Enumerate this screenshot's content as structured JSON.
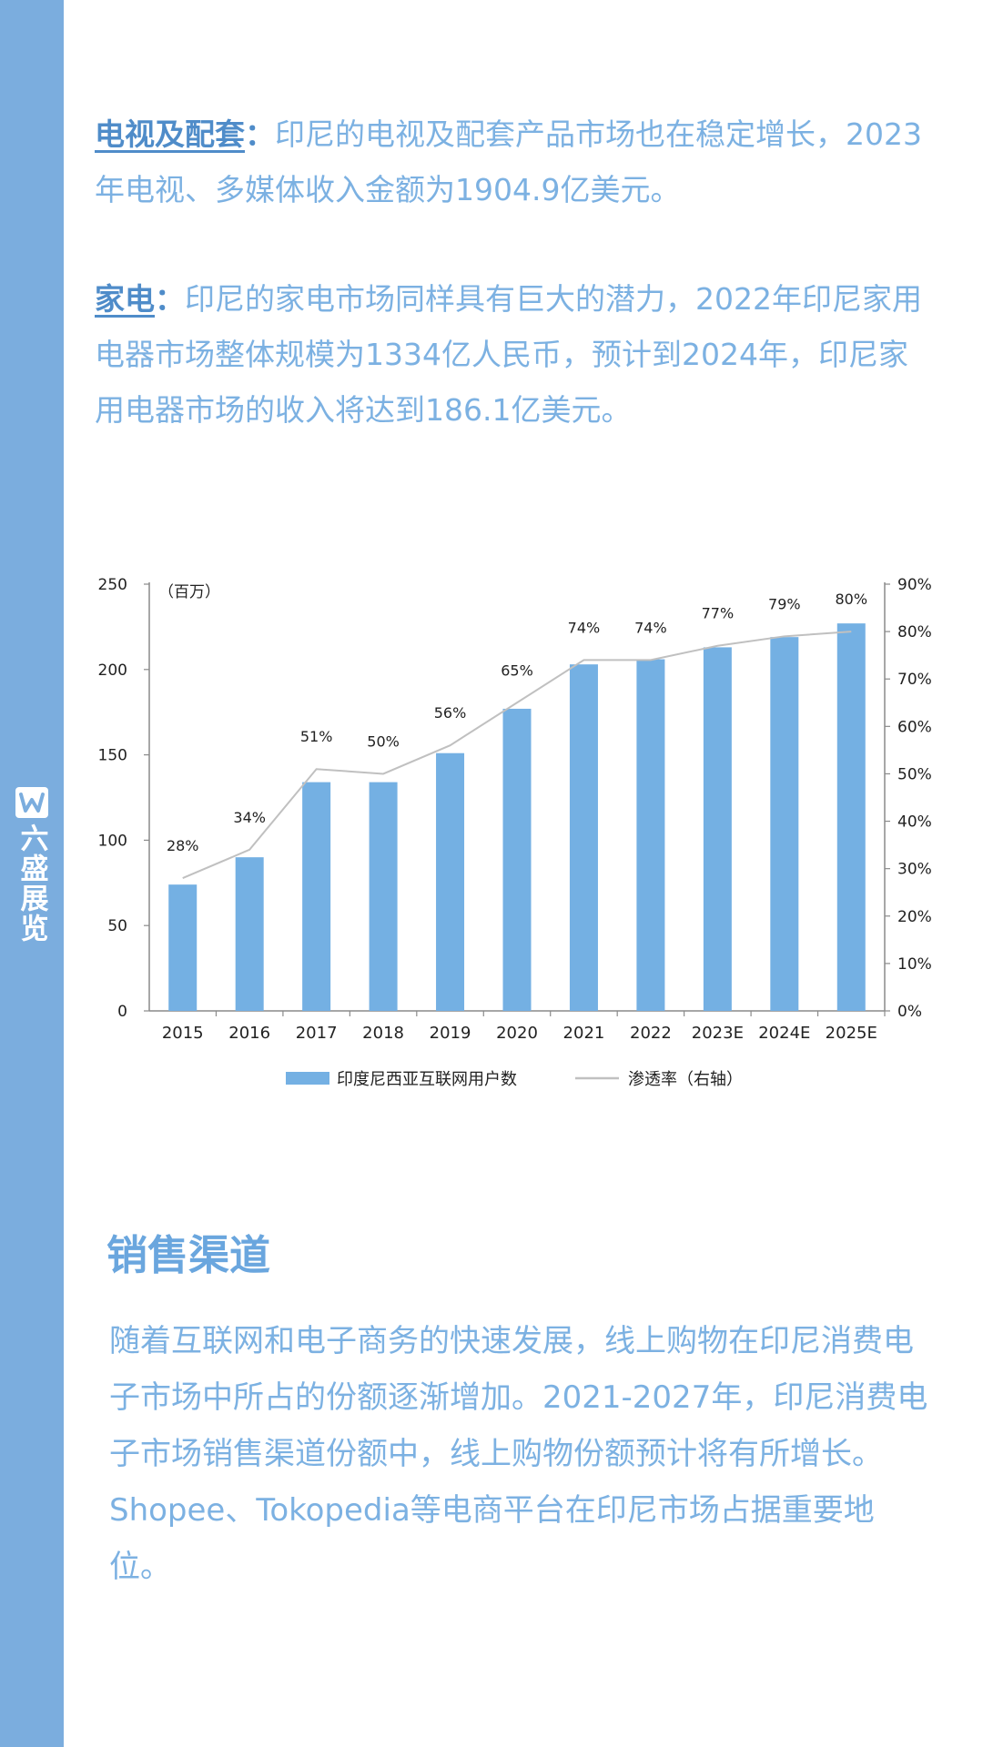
{
  "brand": {
    "name": "六盛展览",
    "logo_letter": "W"
  },
  "tv_section": {
    "keyword": "电视及配套",
    "colon": "：",
    "text": "印尼的电视及配套产品市场也在稳定增长，2023年电视、多媒体收入金额为1904.9亿美元。"
  },
  "appliance_section": {
    "keyword": "家电",
    "colon": "：",
    "text": "印尼的家电市场同样具有巨大的潜力，2022年印尼家用电器市场整体规模为1334亿人民币，预计到2024年，印尼家用电器市场的收入将达到186.1亿美元。"
  },
  "chart_data": {
    "type": "bar",
    "title": "",
    "unit_label": "（百万）",
    "categories": [
      "2015",
      "2016",
      "2017",
      "2018",
      "2019",
      "2020",
      "2021",
      "2022",
      "2023E",
      "2024E",
      "2025E"
    ],
    "series": [
      {
        "name": "印度尼西亚互联网用户数",
        "type": "bar",
        "axis": "left",
        "values": [
          74,
          90,
          134,
          134,
          151,
          177,
          203,
          206,
          213,
          219,
          227
        ]
      },
      {
        "name": "渗透率（右轴）",
        "type": "line",
        "axis": "right",
        "values": [
          28,
          34,
          51,
          50,
          56,
          65,
          74,
          74,
          77,
          79,
          80
        ]
      }
    ],
    "data_labels": [
      "28%",
      "34%",
      "51%",
      "50%",
      "56%",
      "65%",
      "74%",
      "74%",
      "77%",
      "79%",
      "80%"
    ],
    "left_axis": {
      "ylim": [
        0,
        250
      ],
      "ticks": [
        "0",
        "50",
        "100",
        "150",
        "200",
        "250"
      ]
    },
    "right_axis": {
      "ylim": [
        0,
        90
      ],
      "ticks": [
        "0%",
        "10%",
        "20%",
        "30%",
        "40%",
        "50%",
        "60%",
        "70%",
        "80%",
        "90%"
      ]
    },
    "legend_position": "bottom-center",
    "colors": {
      "bar": "#74b0e3",
      "line": "#c0c0c0",
      "axis": "#8a8a8a",
      "text": "#222222"
    }
  },
  "sales_section": {
    "title": "销售渠道",
    "text": "随着互联网和电子商务的快速发展，线上购物在印尼消费电子市场中所占的份额逐渐增加。2021-2027年，印尼消费电子市场销售渠道份额中，线上购物份额预计将有所增长。Shopee、Tokopedia等电商平台在印尼市场占据重要地位。"
  }
}
